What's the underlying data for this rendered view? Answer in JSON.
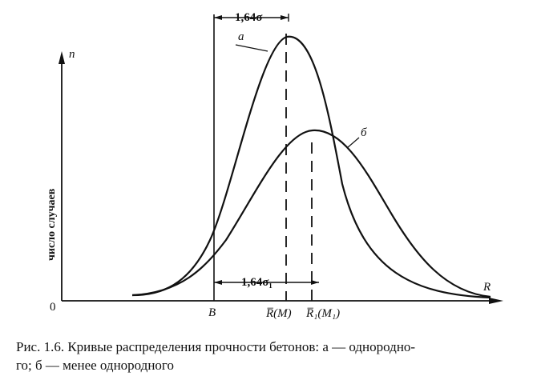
{
  "figure": {
    "axis_y_label": "n",
    "axis_x_label": "R",
    "origin_label": "0",
    "y_title": "число случаев",
    "curve_a_label": "а",
    "curve_b_label": "б",
    "sigma_top": "1,64σ",
    "sigma_bottom": "1,64σ₁",
    "b_label": "B",
    "mean_a_label": "R̅(M)",
    "mean_b_label": "R̅₁(M₁)"
  },
  "caption": {
    "line1": "Рис. 1.6. Кривые распределения прочности бетонов: а — однородно-",
    "line2": "го; б — менее однородного"
  },
  "style": {
    "line_color": "#111111",
    "background": "#ffffff"
  }
}
